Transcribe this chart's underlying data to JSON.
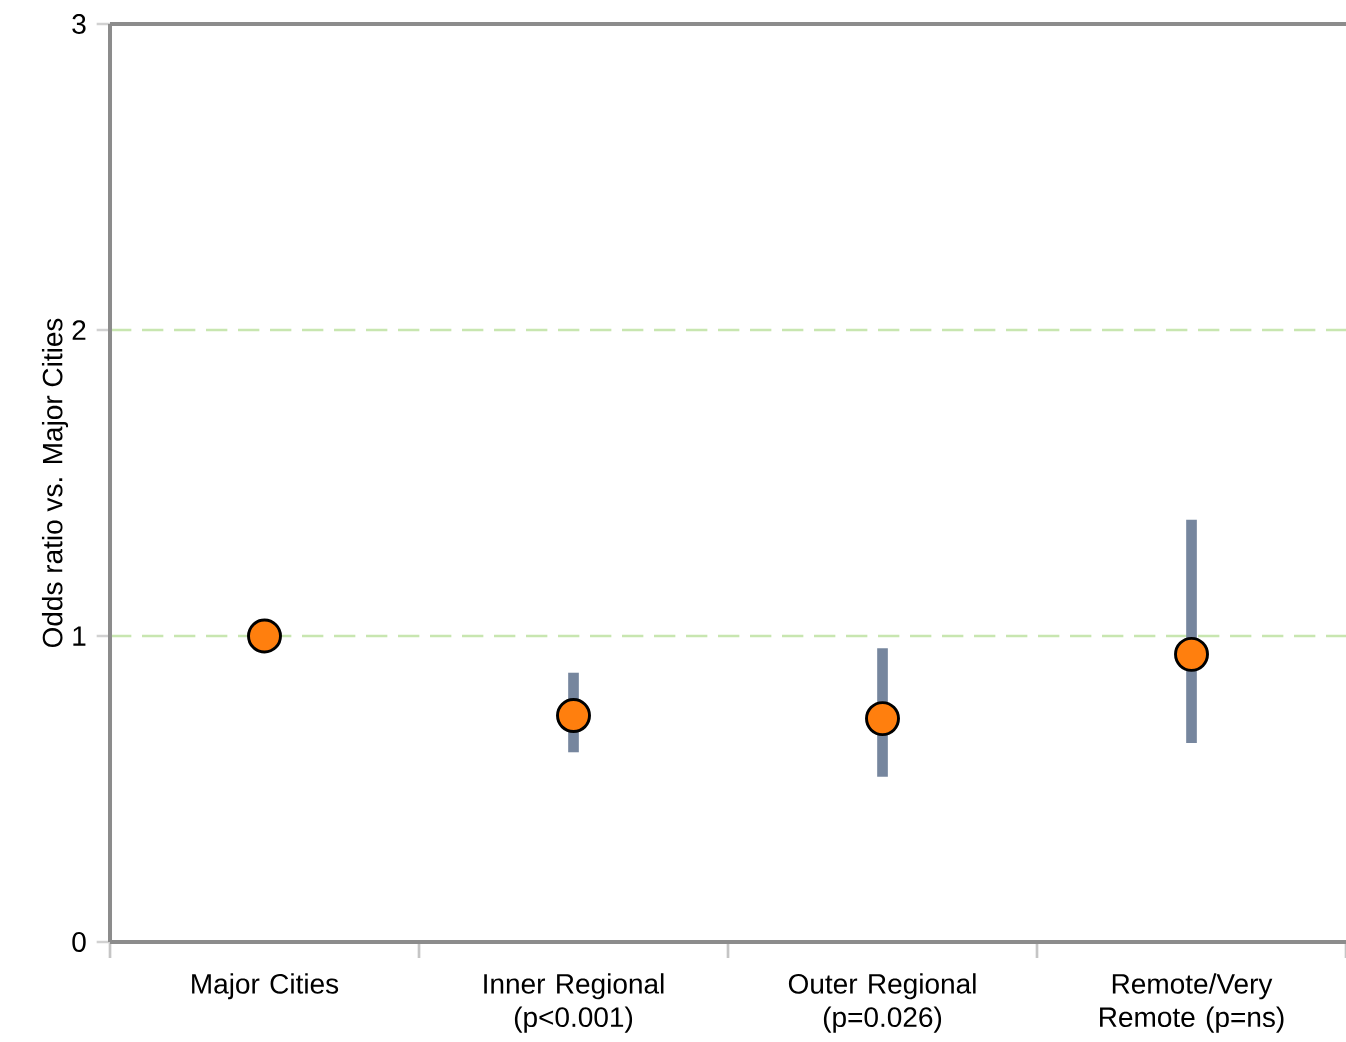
{
  "chart_data": {
    "type": "scatter",
    "ylabel": "Odds ratio vs. Major Cities",
    "categories": [
      "Major Cities",
      "Inner Regional (p<0.001)",
      "Outer Regional (p=0.026)",
      "Remote/Very Remote (p=ns)"
    ],
    "series": [
      {
        "color": "#ff7f0e",
        "values": [
          1.0,
          0.74,
          0.73,
          0.94
        ],
        "errors": [
          null,
          [
            0.62,
            0.88
          ],
          [
            0.54,
            0.96
          ],
          [
            0.65,
            1.38
          ]
        ]
      }
    ],
    "ylim": [
      0,
      3
    ],
    "yticks": [
      0,
      1,
      2,
      3
    ],
    "grid": "y"
  }
}
